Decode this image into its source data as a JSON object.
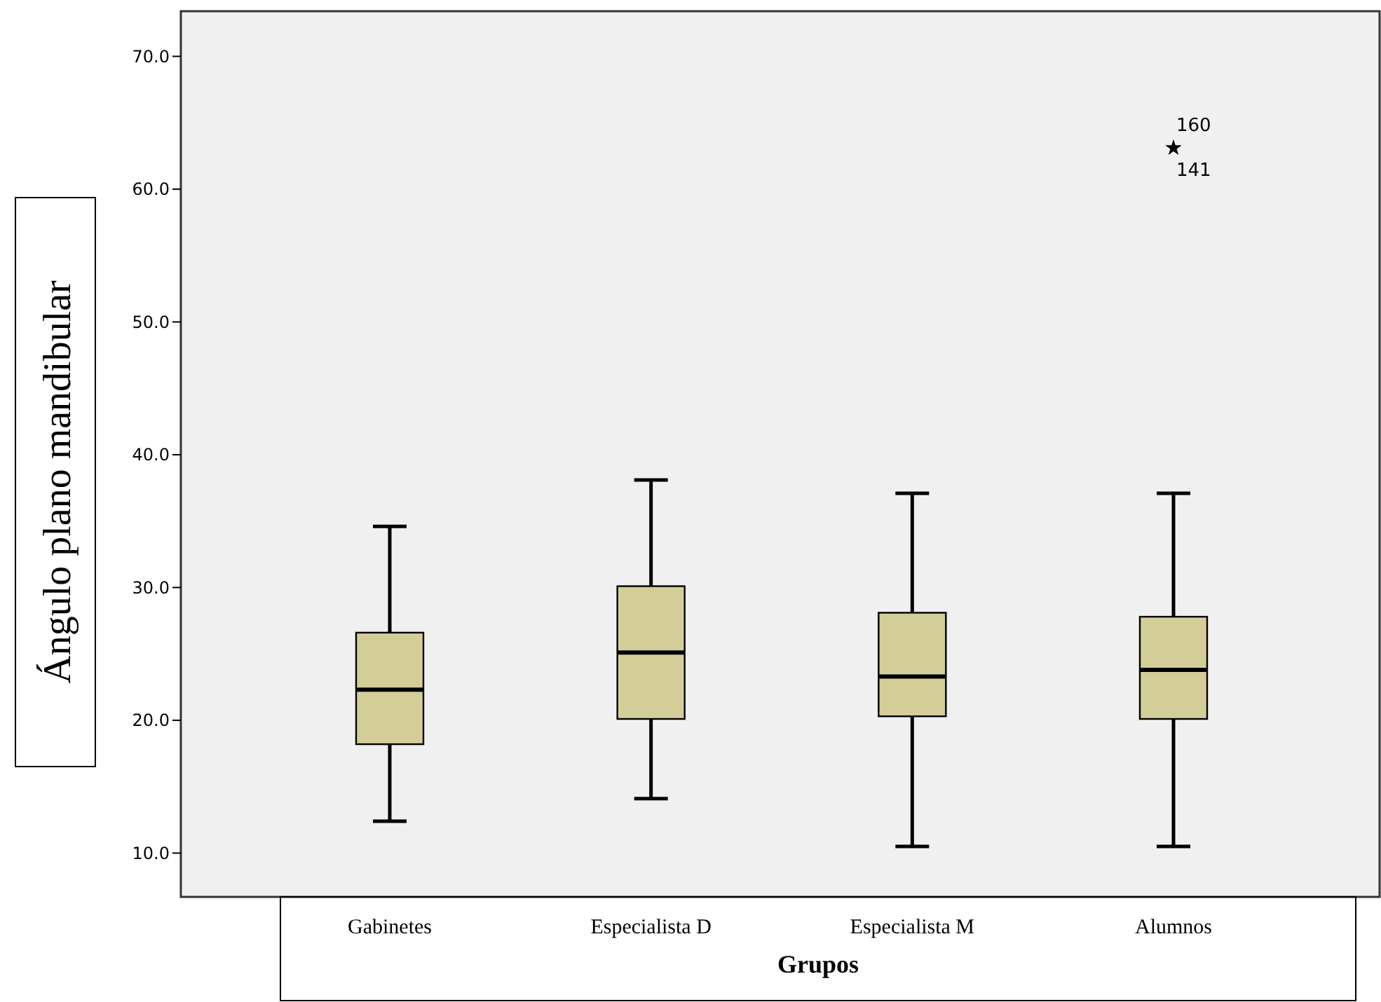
{
  "chart_data": {
    "type": "box",
    "xlabel": "Grupos",
    "ylabel": "Ángulo plano mandibular",
    "categories": [
      "Gabinetes",
      "Especialista D",
      "Especialista M",
      "Alumnos"
    ],
    "boxes": [
      {
        "low": 12.4,
        "q1": 18.2,
        "median": 22.3,
        "q3": 26.6,
        "high": 34.6
      },
      {
        "low": 14.1,
        "q1": 20.1,
        "median": 25.1,
        "q3": 30.1,
        "high": 38.1
      },
      {
        "low": 10.5,
        "q1": 20.3,
        "median": 23.3,
        "q3": 28.1,
        "high": 37.1
      },
      {
        "low": 10.5,
        "q1": 20.1,
        "median": 23.8,
        "q3": 27.8,
        "high": 37.1,
        "outliers": [
          63.1,
          63.1
        ]
      }
    ],
    "color": "#d3cd98",
    "marker": "star",
    "ylim": [
      6.7,
      73.4
    ],
    "yticks": [
      {
        "value": 10,
        "label": "10.0"
      },
      {
        "value": 20,
        "label": "20.0"
      },
      {
        "value": 30,
        "label": "30.0"
      },
      {
        "value": 40,
        "label": "40.0"
      },
      {
        "value": 50,
        "label": "50.0"
      },
      {
        "value": 60,
        "label": "60.0"
      },
      {
        "value": 70,
        "label": "70.0"
      }
    ],
    "grid": false,
    "annotations": [
      "160",
      "141"
    ]
  }
}
